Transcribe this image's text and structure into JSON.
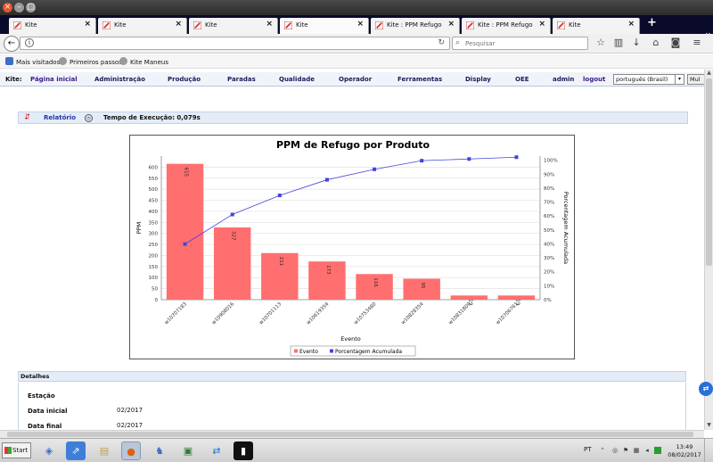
{
  "browser": {
    "tabs": [
      {
        "label": "Kite",
        "active": false
      },
      {
        "label": "Kite",
        "active": false
      },
      {
        "label": "Kite",
        "active": false
      },
      {
        "label": "Kite",
        "active": true
      },
      {
        "label": "Kite : PPM Refugo",
        "active": false
      },
      {
        "label": "Kite : PPM Refugo",
        "active": false
      },
      {
        "label": "Kite",
        "active": false
      }
    ],
    "new_tab_label": "+",
    "url": "",
    "search_placeholder": "Pesquisar",
    "bookmarks": [
      "Mais visitados",
      "Primeiros passos",
      "Kite Maneus"
    ]
  },
  "app_menu": {
    "brand": "Kite:",
    "items": [
      "Página inicial",
      "Administração",
      "Produção",
      "Paradas",
      "Qualidade",
      "Operador",
      "Ferramentas",
      "Display",
      "OEE",
      "admin",
      "logout"
    ],
    "language_selected": "português (Brasil)",
    "extra_button": "Mul"
  },
  "report": {
    "link_label": "Relatório",
    "exec_label": "Tempo de Execução: 0,079s"
  },
  "chart_data": {
    "type": "bar",
    "title": "PPM de Refugo por Produto",
    "xlabel": "Evento",
    "ylabel": "PPM",
    "y2label": "Porcentagem Acumulada",
    "categories": [
      "w10707183",
      "w10908016",
      "w10701113",
      "w10619354",
      "w10753480",
      "w10828354",
      "w10831809",
      "w10706761"
    ],
    "series": [
      {
        "name": "Evento",
        "type": "bar",
        "color": "#ff6f6f",
        "values": [
          615,
          327,
          211,
          173,
          116,
          95,
          19,
          19
        ]
      },
      {
        "name": "Porcentagem Acumulada",
        "type": "line",
        "color": "#4444dd",
        "values": [
          39.9,
          61.1,
          74.8,
          86.0,
          93.5,
          99.7,
          100.9,
          102.2
        ]
      }
    ],
    "data_labels": [
      "615",
      "327",
      "211",
      "173",
      "116",
      "95",
      "19",
      "19"
    ],
    "ylim": [
      0,
      650
    ],
    "yticks": [
      0,
      50,
      100,
      150,
      200,
      250,
      300,
      350,
      400,
      450,
      500,
      550,
      600
    ],
    "y2lim": [
      0,
      103
    ],
    "y2ticks": [
      "0%",
      "10%",
      "20%",
      "30%",
      "40%",
      "50%",
      "60%",
      "70%",
      "80%",
      "90%",
      "100%"
    ],
    "grid": true,
    "legend_placement": "bottom-center"
  },
  "details": {
    "heading": "Detalhes",
    "rows": [
      {
        "label": "Estação",
        "value": ""
      },
      {
        "label": "Data inicial",
        "value": "02/2017"
      },
      {
        "label": "Data final",
        "value": "02/2017"
      }
    ]
  },
  "taskbar": {
    "start_label": "Start",
    "language": "PT",
    "time": "13:49",
    "date": "08/02/2017"
  }
}
